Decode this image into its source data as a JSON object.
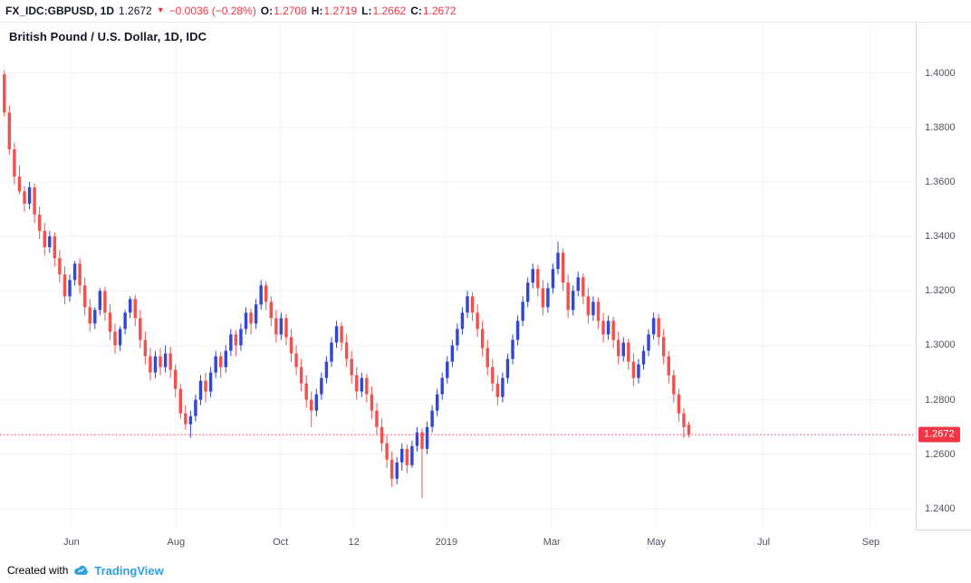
{
  "header": {
    "symbol": "FX_IDC:GBPUSD, 1D",
    "last": "1.2672",
    "direction": "▼",
    "change": "−0.0036 (−0.28%)",
    "ohlc": [
      {
        "label": "O:",
        "value": "1.2708"
      },
      {
        "label": "H:",
        "value": "1.2719"
      },
      {
        "label": "L:",
        "value": "1.2662"
      },
      {
        "label": "C:",
        "value": "1.2672"
      }
    ]
  },
  "chart": {
    "legend_title": "British Pound / U.S. Dollar, 1D, IDC",
    "price_label": "1.2672"
  },
  "footer": {
    "created_with": "Created with",
    "brand": "TradingView"
  },
  "colors": {
    "up": "#3348d0",
    "down": "#ef5350",
    "accent_red": "#f23645",
    "grid": "#f0f3fa",
    "border": "#d4d7dc",
    "text_dark": "#131722",
    "axis_text": "#4f5360",
    "brand_blue": "#2f9fe0"
  },
  "chart_data": {
    "type": "candlestick",
    "title": "British Pound / U.S. Dollar, 1D, IDC",
    "symbol": "FX_IDC:GBPUSD",
    "timeframe": "1D",
    "last_close": 1.2672,
    "open": 1.2708,
    "high": 1.2719,
    "low": 1.2662,
    "close": 1.2672,
    "change": -0.0036,
    "change_pct": -0.28,
    "price_max": 1.4185,
    "price_min": 1.232,
    "data_fraction": 0.753,
    "grid": true,
    "y_ticks": [
      "1.4000",
      "1.3800",
      "1.3600",
      "1.3400",
      "1.3200",
      "1.3000",
      "1.2800",
      "1.2600",
      "1.2400"
    ],
    "x_ticks": [
      {
        "label": "Jun",
        "pos": 0.078
      },
      {
        "label": "Aug",
        "pos": 0.192
      },
      {
        "label": "Oct",
        "pos": 0.306
      },
      {
        "label": "12",
        "pos": 0.386
      },
      {
        "label": "2019",
        "pos": 0.487
      },
      {
        "label": "Mar",
        "pos": 0.602
      },
      {
        "label": "May",
        "pos": 0.716
      },
      {
        "label": "Jul",
        "pos": 0.833
      },
      {
        "label": "Sep",
        "pos": 0.95
      }
    ],
    "candles": [
      [
        1.3995,
        1.401,
        1.384,
        1.3855
      ],
      [
        1.3855,
        1.388,
        1.37,
        1.372
      ],
      [
        1.372,
        1.3745,
        1.359,
        1.362
      ],
      [
        1.362,
        1.366,
        1.3555,
        1.3565
      ],
      [
        1.3565,
        1.3585,
        1.349,
        1.352
      ],
      [
        1.352,
        1.36,
        1.35,
        1.358
      ],
      [
        1.358,
        1.3595,
        1.345,
        1.348
      ],
      [
        1.348,
        1.351,
        1.339,
        1.342
      ],
      [
        1.342,
        1.345,
        1.333,
        1.336
      ],
      [
        1.336,
        1.342,
        1.334,
        1.34
      ],
      [
        1.34,
        1.3415,
        1.329,
        1.332
      ],
      [
        1.332,
        1.335,
        1.323,
        1.326
      ],
      [
        1.326,
        1.329,
        1.315,
        1.318
      ],
      [
        1.318,
        1.326,
        1.316,
        1.324
      ],
      [
        1.324,
        1.331,
        1.322,
        1.33
      ],
      [
        1.33,
        1.332,
        1.319,
        1.322
      ],
      [
        1.322,
        1.325,
        1.311,
        1.314
      ],
      [
        1.314,
        1.317,
        1.305,
        1.308
      ],
      [
        1.308,
        1.314,
        1.306,
        1.313
      ],
      [
        1.313,
        1.321,
        1.311,
        1.32
      ],
      [
        1.32,
        1.3215,
        1.309,
        1.312
      ],
      [
        1.312,
        1.315,
        1.302,
        1.305
      ],
      [
        1.305,
        1.308,
        1.297,
        1.3
      ],
      [
        1.3,
        1.307,
        1.298,
        1.306
      ],
      [
        1.306,
        1.313,
        1.304,
        1.312
      ],
      [
        1.312,
        1.318,
        1.31,
        1.317
      ],
      [
        1.317,
        1.3185,
        1.307,
        1.31
      ],
      [
        1.31,
        1.313,
        1.299,
        1.302
      ],
      [
        1.302,
        1.305,
        1.293,
        1.296
      ],
      [
        1.296,
        1.299,
        1.287,
        1.29
      ],
      [
        1.29,
        1.298,
        1.288,
        1.296
      ],
      [
        1.296,
        1.299,
        1.289,
        1.292
      ],
      [
        1.292,
        1.3,
        1.29,
        1.297
      ],
      [
        1.297,
        1.2995,
        1.288,
        1.291
      ],
      [
        1.291,
        1.293,
        1.281,
        1.284
      ],
      [
        1.284,
        1.286,
        1.273,
        1.275
      ],
      [
        1.275,
        1.278,
        1.269,
        1.271
      ],
      [
        1.271,
        1.276,
        1.266,
        1.274
      ],
      [
        1.274,
        1.282,
        1.272,
        1.28
      ],
      [
        1.28,
        1.289,
        1.278,
        1.287
      ],
      [
        1.287,
        1.29,
        1.279,
        1.283
      ],
      [
        1.283,
        1.292,
        1.281,
        1.29
      ],
      [
        1.29,
        1.298,
        1.288,
        1.296
      ],
      [
        1.296,
        1.2975,
        1.288,
        1.292
      ],
      [
        1.292,
        1.3,
        1.29,
        1.298
      ],
      [
        1.298,
        1.306,
        1.296,
        1.304
      ],
      [
        1.304,
        1.3055,
        1.296,
        1.3
      ],
      [
        1.3,
        1.308,
        1.298,
        1.306
      ],
      [
        1.306,
        1.314,
        1.304,
        1.312
      ],
      [
        1.312,
        1.3135,
        1.304,
        1.308
      ],
      [
        1.308,
        1.317,
        1.306,
        1.315
      ],
      [
        1.315,
        1.324,
        1.313,
        1.322
      ],
      [
        1.322,
        1.3235,
        1.313,
        1.316
      ],
      [
        1.316,
        1.318,
        1.307,
        1.31
      ],
      [
        1.31,
        1.313,
        1.301,
        1.304
      ],
      [
        1.304,
        1.312,
        1.302,
        1.31
      ],
      [
        1.31,
        1.3115,
        1.3,
        1.303
      ],
      [
        1.303,
        1.306,
        1.294,
        1.297
      ],
      [
        1.297,
        1.3,
        1.289,
        1.292
      ],
      [
        1.292,
        1.295,
        1.283,
        1.286
      ],
      [
        1.286,
        1.289,
        1.277,
        1.28
      ],
      [
        1.28,
        1.283,
        1.27,
        1.276
      ],
      [
        1.276,
        1.284,
        1.274,
        1.282
      ],
      [
        1.282,
        1.29,
        1.28,
        1.288
      ],
      [
        1.288,
        1.296,
        1.286,
        1.294
      ],
      [
        1.294,
        1.303,
        1.292,
        1.301
      ],
      [
        1.301,
        1.309,
        1.299,
        1.307
      ],
      [
        1.307,
        1.3085,
        1.298,
        1.301
      ],
      [
        1.301,
        1.304,
        1.292,
        1.295
      ],
      [
        1.295,
        1.298,
        1.286,
        1.289
      ],
      [
        1.289,
        1.292,
        1.28,
        1.283
      ],
      [
        1.283,
        1.29,
        1.281,
        1.288
      ],
      [
        1.288,
        1.2895,
        1.279,
        1.282
      ],
      [
        1.282,
        1.285,
        1.273,
        1.276
      ],
      [
        1.276,
        1.279,
        1.267,
        1.27
      ],
      [
        1.27,
        1.273,
        1.261,
        1.264
      ],
      [
        1.264,
        1.267,
        1.255,
        1.258
      ],
      [
        1.258,
        1.261,
        1.248,
        1.251
      ],
      [
        1.251,
        1.259,
        1.249,
        1.257
      ],
      [
        1.257,
        1.264,
        1.254,
        1.262
      ],
      [
        1.262,
        1.2635,
        1.253,
        1.256
      ],
      [
        1.256,
        1.265,
        1.255,
        1.263
      ],
      [
        1.263,
        1.27,
        1.261,
        1.268
      ],
      [
        1.268,
        1.2695,
        1.244,
        1.262
      ],
      [
        1.262,
        1.272,
        1.26,
        1.27
      ],
      [
        1.27,
        1.278,
        1.268,
        1.276
      ],
      [
        1.276,
        1.284,
        1.274,
        1.282
      ],
      [
        1.282,
        1.29,
        1.28,
        1.288
      ],
      [
        1.288,
        1.296,
        1.286,
        1.294
      ],
      [
        1.294,
        1.302,
        1.292,
        1.3
      ],
      [
        1.3,
        1.308,
        1.298,
        1.306
      ],
      [
        1.306,
        1.314,
        1.304,
        1.312
      ],
      [
        1.312,
        1.32,
        1.31,
        1.318
      ],
      [
        1.318,
        1.3195,
        1.309,
        1.312
      ],
      [
        1.312,
        1.315,
        1.303,
        1.306
      ],
      [
        1.306,
        1.309,
        1.296,
        1.299
      ],
      [
        1.299,
        1.302,
        1.289,
        1.292
      ],
      [
        1.292,
        1.295,
        1.283,
        1.286
      ],
      [
        1.286,
        1.289,
        1.278,
        1.281
      ],
      [
        1.281,
        1.29,
        1.279,
        1.288
      ],
      [
        1.288,
        1.297,
        1.286,
        1.295
      ],
      [
        1.295,
        1.304,
        1.293,
        1.302
      ],
      [
        1.302,
        1.311,
        1.3,
        1.309
      ],
      [
        1.309,
        1.318,
        1.307,
        1.316
      ],
      [
        1.316,
        1.325,
        1.314,
        1.323
      ],
      [
        1.323,
        1.33,
        1.321,
        1.328
      ],
      [
        1.328,
        1.3295,
        1.318,
        1.321
      ],
      [
        1.321,
        1.324,
        1.311,
        1.314
      ],
      [
        1.314,
        1.323,
        1.312,
        1.321
      ],
      [
        1.321,
        1.33,
        1.319,
        1.328
      ],
      [
        1.328,
        1.338,
        1.326,
        1.334
      ],
      [
        1.334,
        1.3355,
        1.32,
        1.323
      ],
      [
        1.323,
        1.326,
        1.31,
        1.313
      ],
      [
        1.313,
        1.322,
        1.311,
        1.32
      ],
      [
        1.32,
        1.327,
        1.318,
        1.325
      ],
      [
        1.325,
        1.3265,
        1.315,
        1.318
      ],
      [
        1.318,
        1.321,
        1.308,
        1.311
      ],
      [
        1.311,
        1.318,
        1.309,
        1.316
      ],
      [
        1.316,
        1.3175,
        1.306,
        1.309
      ],
      [
        1.309,
        1.312,
        1.301,
        1.304
      ],
      [
        1.304,
        1.311,
        1.302,
        1.309
      ],
      [
        1.309,
        1.3105,
        1.299,
        1.302
      ],
      [
        1.302,
        1.305,
        1.293,
        1.296
      ],
      [
        1.296,
        1.303,
        1.294,
        1.301
      ],
      [
        1.301,
        1.3025,
        1.291,
        1.294
      ],
      [
        1.294,
        1.297,
        1.285,
        1.288
      ],
      [
        1.288,
        1.295,
        1.286,
        1.293
      ],
      [
        1.293,
        1.3,
        1.291,
        1.298
      ],
      [
        1.298,
        1.306,
        1.296,
        1.304
      ],
      [
        1.304,
        1.312,
        1.302,
        1.31
      ],
      [
        1.31,
        1.3115,
        1.3,
        1.303
      ],
      [
        1.303,
        1.306,
        1.293,
        1.296
      ],
      [
        1.296,
        1.298,
        1.286,
        1.289
      ],
      [
        1.289,
        1.291,
        1.279,
        1.282
      ],
      [
        1.282,
        1.284,
        1.272,
        1.275
      ],
      [
        1.275,
        1.277,
        1.266,
        1.27
      ],
      [
        1.2708,
        1.2719,
        1.2662,
        1.2672
      ]
    ]
  }
}
